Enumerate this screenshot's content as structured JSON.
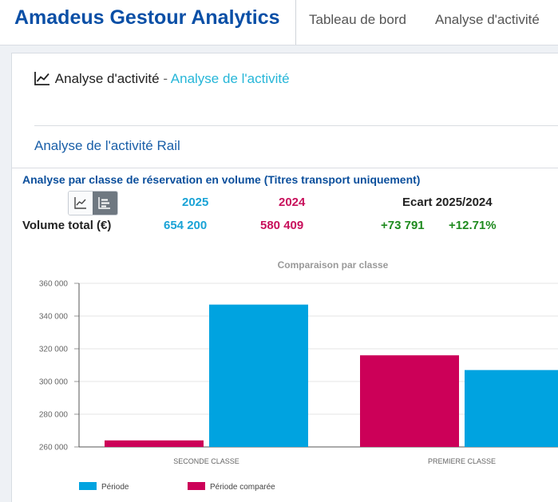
{
  "app": {
    "title": "Amadeus Gestour Analytics",
    "nav": [
      {
        "label": "Tableau de bord"
      },
      {
        "label": "Analyse d'activité"
      }
    ]
  },
  "page": {
    "header_main": "Analyse d'activité",
    "header_sep": " - ",
    "header_sub": "Analyse de l'activité",
    "section_title": "Analyse de l'activité Rail"
  },
  "summary": {
    "title": "Analyse par classe de réservation en volume (Titres transport uniquement)",
    "col_year_current": "2025",
    "col_year_previous": "2024",
    "col_ecart": "Ecart 2025/2024",
    "row_label": "Volume total (€)",
    "current_value": "654 200",
    "previous_value": "580 409",
    "diff_value": "+73 791",
    "diff_pct": "+12.71%",
    "view_toggle": {
      "selected": "bar",
      "options": [
        "line-chart-icon",
        "bar-chart-icon"
      ]
    }
  },
  "colors": {
    "current": "#00a3e0",
    "previous": "#cc0058",
    "positive": "#1e8a1e",
    "brand": "#0a4fa6"
  },
  "chart_data": {
    "type": "bar",
    "title": "Comparaison par classe",
    "categories": [
      "SECONDE CLASSE",
      "PREMIERE CLASSE"
    ],
    "series": [
      {
        "name": "Période comparée",
        "color": "#cc0058",
        "values": [
          264000,
          316000
        ]
      },
      {
        "name": "Période",
        "color": "#00a3e0",
        "values": [
          347000,
          307000
        ]
      }
    ],
    "ylim": [
      260000,
      360000
    ],
    "yticks": [
      260000,
      280000,
      300000,
      320000,
      340000,
      360000
    ],
    "ytick_labels": [
      "260 000",
      "280 000",
      "300 000",
      "320 000",
      "340 000",
      "360 000"
    ],
    "grid": true,
    "legend": {
      "position": "bottom-left",
      "items": [
        {
          "label": "Période",
          "color": "#00a3e0"
        },
        {
          "label": "Période comparée",
          "color": "#cc0058"
        }
      ]
    }
  }
}
